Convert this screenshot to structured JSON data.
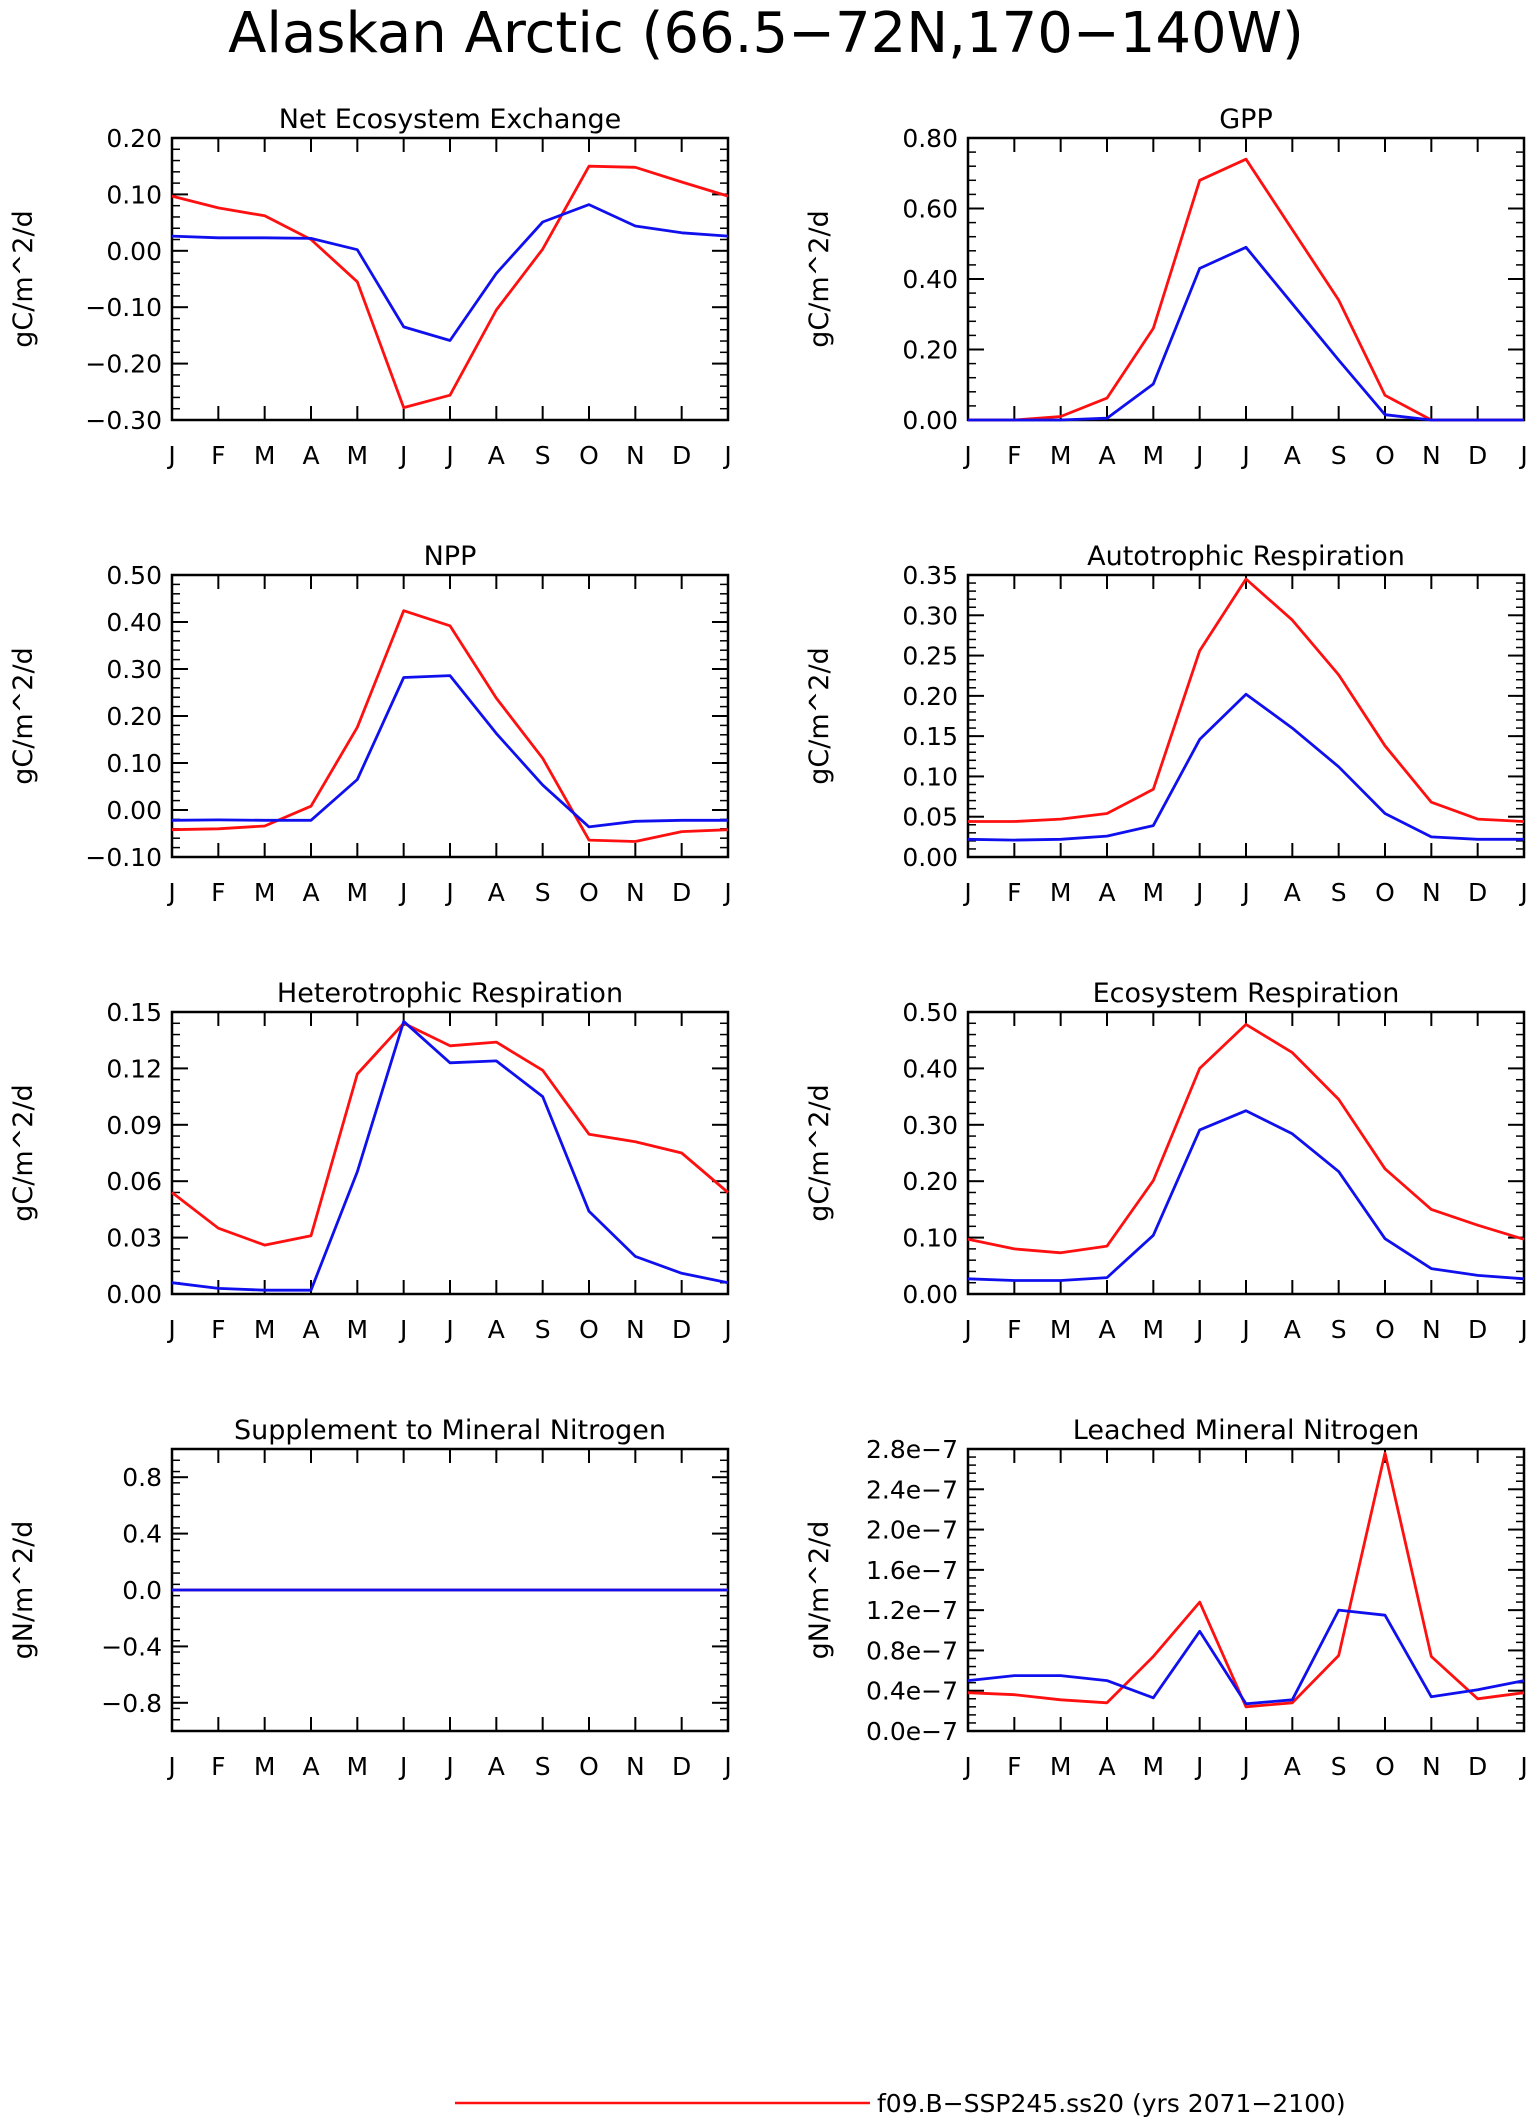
{
  "title": "Alaskan Arctic (66.5−72N,170−140W)",
  "colors": {
    "red": "#ff1010",
    "blue": "#1010ee"
  },
  "months": [
    "J",
    "F",
    "M",
    "A",
    "M",
    "J",
    "J",
    "A",
    "S",
    "O",
    "N",
    "D",
    "J"
  ],
  "legend": [
    {
      "color": "red",
      "label": "f09.B−SSP245.ss20 (yrs 2071−2100)"
    }
  ],
  "chart_data": [
    {
      "type": "line",
      "title": "Net Ecosystem Exchange",
      "ylabel": "gC/m^2/d",
      "ylim": [
        -0.3,
        0.2
      ],
      "yticks": [
        -0.3,
        -0.2,
        -0.1,
        0.0,
        0.1,
        0.2
      ],
      "ytick_labels": [
        "−0.30",
        "−0.20",
        "−0.10",
        "0.00",
        "0.10",
        "0.20"
      ],
      "categories": [
        "J",
        "F",
        "M",
        "A",
        "M",
        "J",
        "J",
        "A",
        "S",
        "O",
        "N",
        "D",
        "J"
      ],
      "series": [
        {
          "color": "red",
          "values": [
            0.097,
            0.076,
            0.062,
            0.02,
            -0.055,
            -0.278,
            -0.256,
            -0.105,
            0.003,
            0.15,
            0.148,
            0.122,
            0.097
          ]
        },
        {
          "color": "blue",
          "values": [
            0.026,
            0.023,
            0.023,
            0.022,
            0.002,
            -0.135,
            -0.159,
            -0.04,
            0.051,
            0.082,
            0.044,
            0.032,
            0.026
          ]
        }
      ]
    },
    {
      "type": "line",
      "title": "GPP",
      "ylabel": "gC/m^2/d",
      "ylim": [
        0.0,
        0.8
      ],
      "yticks": [
        0.0,
        0.2,
        0.4,
        0.6,
        0.8
      ],
      "ytick_labels": [
        "0.00",
        "0.20",
        "0.40",
        "0.60",
        "0.80"
      ],
      "categories": [
        "J",
        "F",
        "M",
        "A",
        "M",
        "J",
        "J",
        "A",
        "S",
        "O",
        "N",
        "D",
        "J"
      ],
      "series": [
        {
          "color": "red",
          "values": [
            0.0,
            0.0,
            0.01,
            0.062,
            0.26,
            0.68,
            0.74,
            0.54,
            0.34,
            0.07,
            0.0,
            0.0,
            0.0
          ]
        },
        {
          "color": "blue",
          "values": [
            0.0,
            0.0,
            0.0,
            0.005,
            0.102,
            0.43,
            0.49,
            0.33,
            0.17,
            0.015,
            0.0,
            0.0,
            0.0
          ]
        }
      ]
    },
    {
      "type": "line",
      "title": "NPP",
      "ylabel": "gC/m^2/d",
      "ylim": [
        -0.1,
        0.5
      ],
      "yticks": [
        -0.1,
        0.0,
        0.1,
        0.2,
        0.3,
        0.4,
        0.5
      ],
      "ytick_labels": [
        "−0.10",
        "0.00",
        "0.10",
        "0.20",
        "0.30",
        "0.40",
        "0.50"
      ],
      "categories": [
        "J",
        "F",
        "M",
        "A",
        "M",
        "J",
        "J",
        "A",
        "S",
        "O",
        "N",
        "D",
        "J"
      ],
      "series": [
        {
          "color": "red",
          "values": [
            -0.042,
            -0.04,
            -0.034,
            0.008,
            0.176,
            0.424,
            0.392,
            0.238,
            0.11,
            -0.064,
            -0.067,
            -0.046,
            -0.042
          ]
        },
        {
          "color": "blue",
          "values": [
            -0.022,
            -0.021,
            -0.022,
            -0.022,
            0.065,
            0.282,
            0.286,
            0.163,
            0.053,
            -0.036,
            -0.024,
            -0.022,
            -0.022
          ]
        }
      ]
    },
    {
      "type": "line",
      "title": "Autotrophic Respiration",
      "ylabel": "gC/m^2/d",
      "ylim": [
        0.0,
        0.35
      ],
      "yticks": [
        0.0,
        0.05,
        0.1,
        0.15,
        0.2,
        0.25,
        0.3,
        0.35
      ],
      "ytick_labels": [
        "0.00",
        "0.05",
        "0.10",
        "0.15",
        "0.20",
        "0.25",
        "0.30",
        "0.35"
      ],
      "categories": [
        "J",
        "F",
        "M",
        "A",
        "M",
        "J",
        "J",
        "A",
        "S",
        "O",
        "N",
        "D",
        "J"
      ],
      "series": [
        {
          "color": "red",
          "values": [
            0.044,
            0.044,
            0.047,
            0.054,
            0.084,
            0.256,
            0.345,
            0.294,
            0.226,
            0.138,
            0.068,
            0.047,
            0.044
          ]
        },
        {
          "color": "blue",
          "values": [
            0.022,
            0.021,
            0.022,
            0.026,
            0.039,
            0.146,
            0.202,
            0.16,
            0.112,
            0.054,
            0.025,
            0.022,
            0.022
          ]
        }
      ]
    },
    {
      "type": "line",
      "title": "Heterotrophic Respiration",
      "ylabel": "gC/m^2/d",
      "ylim": [
        0.0,
        0.15
      ],
      "yticks": [
        0.0,
        0.03,
        0.06,
        0.09,
        0.12,
        0.15
      ],
      "ytick_labels": [
        "0.00",
        "0.03",
        "0.06",
        "0.09",
        "0.12",
        "0.15"
      ],
      "categories": [
        "J",
        "F",
        "M",
        "A",
        "M",
        "J",
        "J",
        "A",
        "S",
        "O",
        "N",
        "D",
        "J"
      ],
      "series": [
        {
          "color": "red",
          "values": [
            0.054,
            0.035,
            0.026,
            0.031,
            0.117,
            0.144,
            0.132,
            0.134,
            0.119,
            0.085,
            0.081,
            0.075,
            0.054
          ]
        },
        {
          "color": "blue",
          "values": [
            0.006,
            0.003,
            0.002,
            0.002,
            0.065,
            0.145,
            0.123,
            0.124,
            0.105,
            0.044,
            0.02,
            0.011,
            0.006
          ]
        }
      ]
    },
    {
      "type": "line",
      "title": "Ecosystem Respiration",
      "ylabel": "gC/m^2/d",
      "ylim": [
        0.0,
        0.5
      ],
      "yticks": [
        0.0,
        0.1,
        0.2,
        0.3,
        0.4,
        0.5
      ],
      "ytick_labels": [
        "0.00",
        "0.10",
        "0.20",
        "0.30",
        "0.40",
        "0.50"
      ],
      "categories": [
        "J",
        "F",
        "M",
        "A",
        "M",
        "J",
        "J",
        "A",
        "S",
        "O",
        "N",
        "D",
        "J"
      ],
      "series": [
        {
          "color": "red",
          "values": [
            0.097,
            0.08,
            0.073,
            0.085,
            0.201,
            0.4,
            0.478,
            0.428,
            0.345,
            0.222,
            0.15,
            0.122,
            0.097
          ]
        },
        {
          "color": "blue",
          "values": [
            0.027,
            0.024,
            0.024,
            0.029,
            0.104,
            0.291,
            0.325,
            0.284,
            0.217,
            0.098,
            0.045,
            0.033,
            0.027
          ]
        }
      ]
    },
    {
      "type": "line",
      "title": "Supplement to Mineral Nitrogen",
      "ylabel": "gN/m^2/d",
      "ylim": [
        -1.0,
        1.0
      ],
      "yticks": [
        -0.8,
        -0.4,
        0.0,
        0.4,
        0.8
      ],
      "ytick_labels": [
        "−0.8",
        "−0.4",
        "0.0",
        "0.4",
        "0.8"
      ],
      "categories": [
        "J",
        "F",
        "M",
        "A",
        "M",
        "J",
        "J",
        "A",
        "S",
        "O",
        "N",
        "D",
        "J"
      ],
      "series": [
        {
          "color": "red",
          "values": [
            0,
            0,
            0,
            0,
            0,
            0,
            0,
            0,
            0,
            0,
            0,
            0,
            0
          ]
        },
        {
          "color": "blue",
          "values": [
            0,
            0,
            0,
            0,
            0,
            0,
            0,
            0,
            0,
            0,
            0,
            0,
            0
          ]
        }
      ]
    },
    {
      "type": "line",
      "title": "Leached Mineral Nitrogen",
      "ylabel": "gN/m^2/d",
      "ylim": [
        0.0,
        2.8
      ],
      "value_scale": "1e-7",
      "yticks": [
        0.0,
        0.4,
        0.8,
        1.2,
        1.6,
        2.0,
        2.4,
        2.8
      ],
      "ytick_labels": [
        "0.0e−7",
        "0.4e−7",
        "0.8e−7",
        "1.2e−7",
        "1.6e−7",
        "2.0e−7",
        "2.4e−7",
        "2.8e−7"
      ],
      "categories": [
        "J",
        "F",
        "M",
        "A",
        "M",
        "J",
        "J",
        "A",
        "S",
        "O",
        "N",
        "D",
        "J"
      ],
      "series": [
        {
          "color": "red",
          "values": [
            0.38,
            0.36,
            0.31,
            0.28,
            0.74,
            1.28,
            0.24,
            0.28,
            0.75,
            2.76,
            0.74,
            0.32,
            0.38
          ]
        },
        {
          "color": "blue",
          "values": [
            0.5,
            0.55,
            0.55,
            0.5,
            0.33,
            0.99,
            0.27,
            0.31,
            1.2,
            1.15,
            0.34,
            0.41,
            0.5
          ]
        }
      ]
    }
  ]
}
